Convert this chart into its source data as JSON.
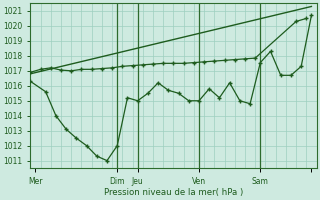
{
  "xlabel": "Pression niveau de la mer( hPa )",
  "ylim": [
    1010.5,
    1021.5
  ],
  "xlim": [
    0,
    56
  ],
  "yticks": [
    1011,
    1012,
    1013,
    1014,
    1015,
    1016,
    1017,
    1018,
    1019,
    1020,
    1021
  ],
  "xtick_positions": [
    1,
    17,
    21,
    33,
    45,
    55
  ],
  "xtick_labels": [
    "Mer",
    "Dim",
    "Jeu",
    "Ven",
    "Sam",
    ""
  ],
  "bg_color": "#ceeae0",
  "grid_color": "#9ecfbf",
  "line_color": "#1e5c1e",
  "trend_x": [
    0,
    55
  ],
  "trend_y": [
    1016.8,
    1021.3
  ],
  "line1_x": [
    0,
    2,
    4,
    6,
    8,
    10,
    12,
    14,
    16,
    18,
    20,
    22,
    24,
    26,
    28,
    30,
    32,
    34,
    36,
    38,
    40,
    42,
    44,
    52,
    54
  ],
  "line1_y": [
    1016.9,
    1017.1,
    1017.2,
    1017.05,
    1017.0,
    1017.1,
    1017.1,
    1017.15,
    1017.2,
    1017.3,
    1017.35,
    1017.4,
    1017.45,
    1017.5,
    1017.5,
    1017.5,
    1017.55,
    1017.6,
    1017.65,
    1017.7,
    1017.75,
    1017.8,
    1017.85,
    1020.3,
    1020.5
  ],
  "line2_x": [
    0,
    3,
    5,
    7,
    9,
    11,
    13,
    15,
    17,
    19,
    21,
    23,
    25,
    27,
    29,
    31,
    33,
    35,
    37,
    39,
    41,
    43,
    45,
    47,
    49,
    51,
    53,
    55
  ],
  "line2_y": [
    1016.3,
    1015.6,
    1014.0,
    1013.1,
    1012.5,
    1012.0,
    1011.3,
    1011.0,
    1012.0,
    1015.2,
    1015.0,
    1015.5,
    1016.2,
    1015.7,
    1015.5,
    1015.0,
    1015.0,
    1015.8,
    1015.2,
    1016.2,
    1015.0,
    1014.8,
    1017.55,
    1018.3,
    1016.7,
    1016.7,
    1017.3,
    1020.7
  ],
  "vline_positions": [
    17,
    21,
    33,
    45
  ],
  "vline_color": "#2d6b2d",
  "marker_color": "#1e5c1e"
}
